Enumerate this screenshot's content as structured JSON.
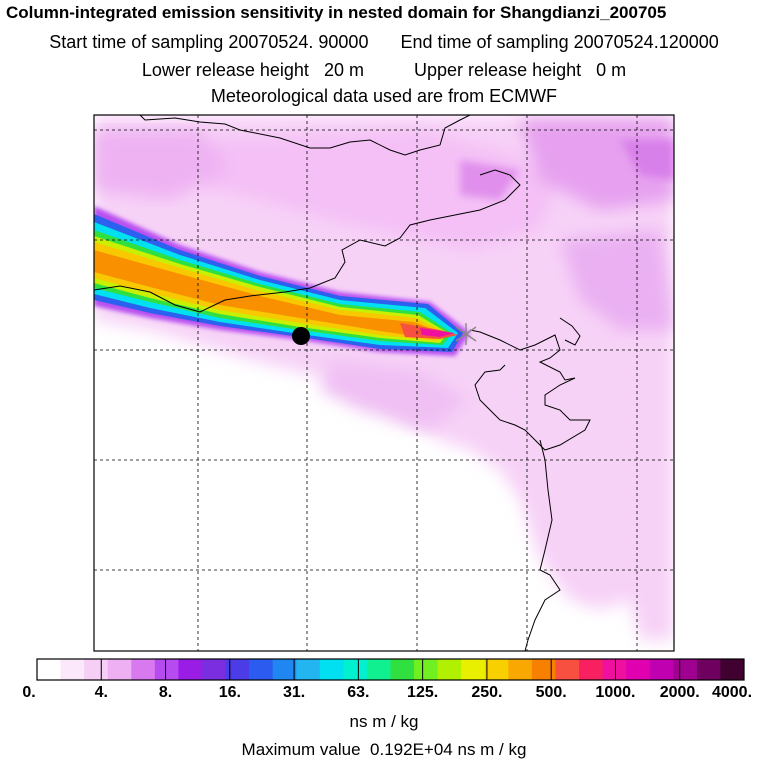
{
  "title": "Column-integrated emission sensitivity in nested domain for Shangdianzi_200705",
  "start_label": "Start time of sampling",
  "start_value": "20070524. 90000",
  "end_label": "End time of sampling",
  "end_value": "20070524.120000",
  "lower_label": "Lower release height",
  "lower_value": "20 m",
  "upper_label": "Upper release height",
  "upper_value": "0 m",
  "met_text": "Meteorological data used are from ECMWF",
  "colorbar": {
    "ticks": [
      "0.",
      "4.",
      "8.",
      "16.",
      "31.",
      "63.",
      "125.",
      "250.",
      "500.",
      "1000.",
      "2000.",
      "4000."
    ],
    "colors": [
      "#ffffff",
      "#fbe8fb",
      "#f6cff6",
      "#efb0f3",
      "#d879ef",
      "#b64cf0",
      "#9a1de6",
      "#7a2ee0",
      "#4b3ce8",
      "#2c5bf0",
      "#1f86f2",
      "#22b5f0",
      "#00e0f0",
      "#00f0d0",
      "#10f090",
      "#30e040",
      "#70f020",
      "#b0f000",
      "#e8f000",
      "#f8d000",
      "#f8a800",
      "#f88000",
      "#f85040",
      "#f82060",
      "#f010a0",
      "#e000b0",
      "#c000b0",
      "#a00090",
      "#700060",
      "#400030"
    ],
    "units": "ns m / kg",
    "max_label": "Maximum value",
    "max_value": "0.192E+04",
    "max_units": "ns m / kg"
  },
  "map": {
    "receptor_marker": "receptor-dot",
    "release_marker": "release-star"
  }
}
